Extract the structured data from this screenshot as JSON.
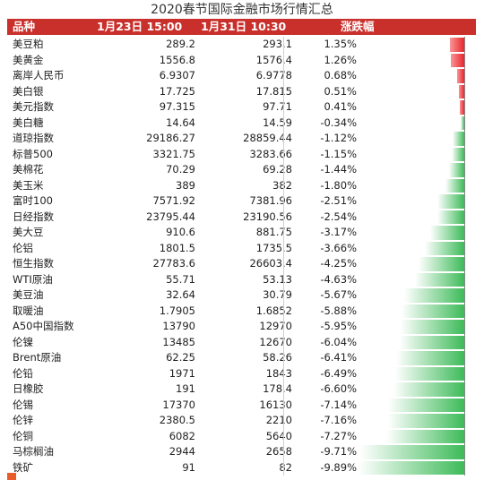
{
  "title": "2020春节国际金融市场行情汇总",
  "headers": {
    "name": "品种",
    "date1": "1月23日 15:00",
    "date2": "1月31日 10:30",
    "change": "涨跌幅"
  },
  "colors": {
    "header_bg": "#c9302c",
    "rise": "#e8262e",
    "fall": "#3dbb59"
  },
  "chart_data": {
    "type": "bar",
    "orientation": "horizontal",
    "title": "2020春节国际金融市场行情汇总",
    "value_unit": "%",
    "rows": [
      {
        "name": "美豆粕",
        "v1": "289.2",
        "v2": "293.1",
        "chg_label": "1.35%",
        "chg": 1.35
      },
      {
        "name": "美黄金",
        "v1": "1556.8",
        "v2": "1576.4",
        "chg_label": "1.26%",
        "chg": 1.26
      },
      {
        "name": "离岸人民币",
        "v1": "6.9307",
        "v2": "6.9778",
        "chg_label": "0.68%",
        "chg": 0.68
      },
      {
        "name": "美白银",
        "v1": "17.725",
        "v2": "17.815",
        "chg_label": "0.51%",
        "chg": 0.51
      },
      {
        "name": "美元指数",
        "v1": "97.315",
        "v2": "97.71",
        "chg_label": "0.41%",
        "chg": 0.41
      },
      {
        "name": "美白糖",
        "v1": "14.64",
        "v2": "14.59",
        "chg_label": "-0.34%",
        "chg": -0.34
      },
      {
        "name": "道琼指数",
        "v1": "29186.27",
        "v2": "28859.44",
        "chg_label": "-1.12%",
        "chg": -1.12
      },
      {
        "name": "标普500",
        "v1": "3321.75",
        "v2": "3283.66",
        "chg_label": "-1.15%",
        "chg": -1.15
      },
      {
        "name": "美棉花",
        "v1": "70.29",
        "v2": "69.28",
        "chg_label": "-1.44%",
        "chg": -1.44
      },
      {
        "name": "美玉米",
        "v1": "389",
        "v2": "382",
        "chg_label": "-1.80%",
        "chg": -1.8
      },
      {
        "name": "富时100",
        "v1": "7571.92",
        "v2": "7381.96",
        "chg_label": "-2.51%",
        "chg": -2.51
      },
      {
        "name": "日经指数",
        "v1": "23795.44",
        "v2": "23190.56",
        "chg_label": "-2.54%",
        "chg": -2.54
      },
      {
        "name": "美大豆",
        "v1": "910.6",
        "v2": "881.75",
        "chg_label": "-3.17%",
        "chg": -3.17
      },
      {
        "name": "伦铝",
        "v1": "1801.5",
        "v2": "1735.5",
        "chg_label": "-3.66%",
        "chg": -3.66
      },
      {
        "name": "恒生指数",
        "v1": "27783.6",
        "v2": "26603.4",
        "chg_label": "-4.25%",
        "chg": -4.25
      },
      {
        "name": "WTI原油",
        "v1": "55.71",
        "v2": "53.13",
        "chg_label": "-4.63%",
        "chg": -4.63
      },
      {
        "name": "美豆油",
        "v1": "32.64",
        "v2": "30.79",
        "chg_label": "-5.67%",
        "chg": -5.67
      },
      {
        "name": "取暖油",
        "v1": "1.7905",
        "v2": "1.6852",
        "chg_label": "-5.88%",
        "chg": -5.88
      },
      {
        "name": "A50中国指数",
        "v1": "13790",
        "v2": "12970",
        "chg_label": "-5.95%",
        "chg": -5.95
      },
      {
        "name": "伦镍",
        "v1": "13485",
        "v2": "12670",
        "chg_label": "-6.04%",
        "chg": -6.04
      },
      {
        "name": "Brent原油",
        "v1": "62.25",
        "v2": "58.26",
        "chg_label": "-6.41%",
        "chg": -6.41
      },
      {
        "name": "伦铅",
        "v1": "1971",
        "v2": "1843",
        "chg_label": "-6.49%",
        "chg": -6.49
      },
      {
        "name": "日橡胶",
        "v1": "191",
        "v2": "178.4",
        "chg_label": "-6.60%",
        "chg": -6.6
      },
      {
        "name": "伦锡",
        "v1": "17370",
        "v2": "16130",
        "chg_label": "-7.14%",
        "chg": -7.14
      },
      {
        "name": "伦锌",
        "v1": "2380.5",
        "v2": "2210",
        "chg_label": "-7.16%",
        "chg": -7.16
      },
      {
        "name": "伦铜",
        "v1": "6082",
        "v2": "5640",
        "chg_label": "-7.27%",
        "chg": -7.27
      },
      {
        "name": "马棕榈油",
        "v1": "2944",
        "v2": "2658",
        "chg_label": "-9.71%",
        "chg": -9.71
      },
      {
        "name": "铁矿",
        "v1": "91",
        "v2": "82",
        "chg_label": "-9.89%",
        "chg": -9.89
      }
    ]
  }
}
